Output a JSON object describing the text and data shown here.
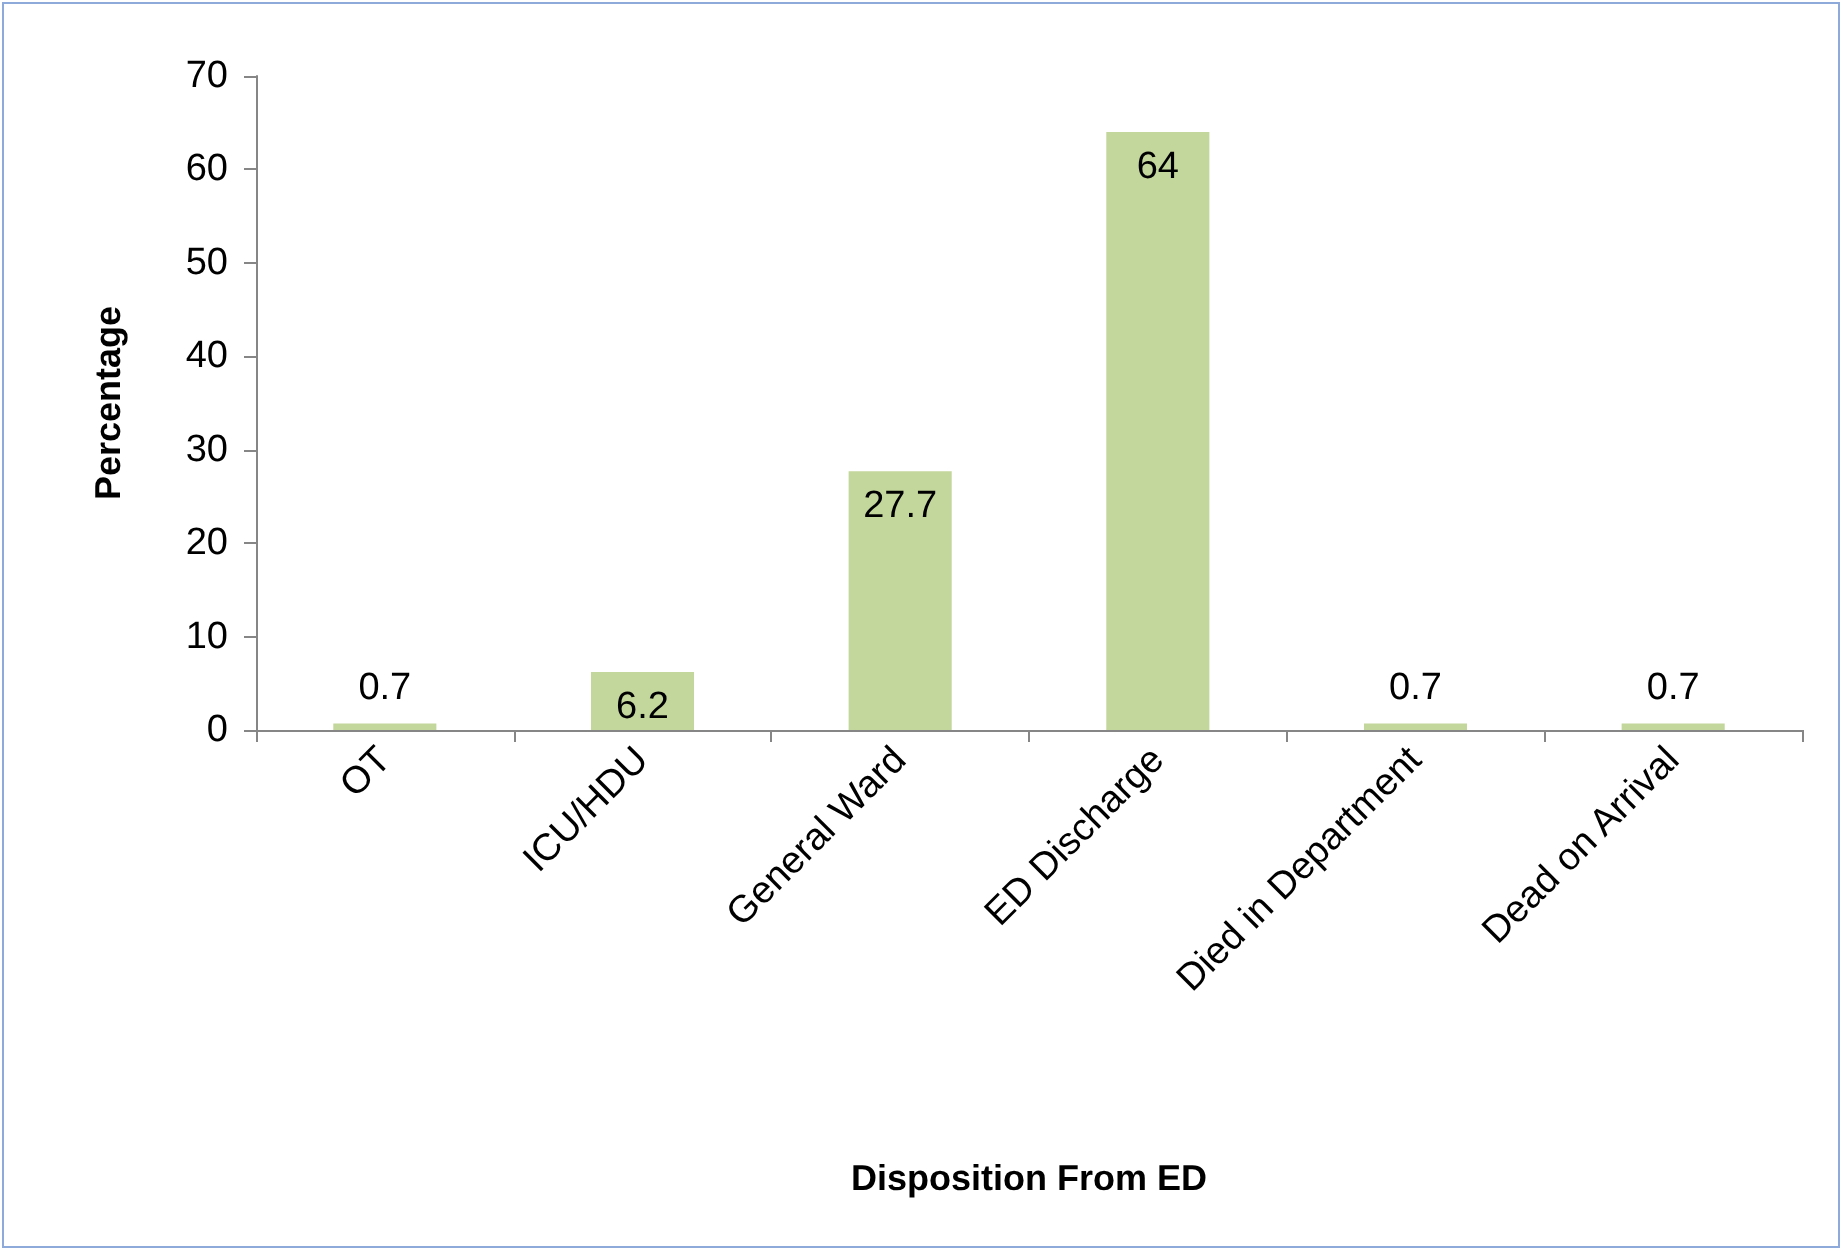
{
  "chart_data": {
    "type": "bar",
    "xlabel": "Disposition From ED",
    "ylabel": "Percentage",
    "categories": [
      "OT",
      "ICU/HDU",
      "General Ward",
      "ED Discharge",
      "Died in Department",
      "Dead on Arrival"
    ],
    "values": [
      0.7,
      6.2,
      27.7,
      64,
      0.7,
      0.7
    ],
    "color": "#c3d69b",
    "ylim": [
      0,
      70
    ],
    "yticks": [
      0,
      10,
      20,
      30,
      40,
      50,
      60,
      70
    ],
    "grid": false,
    "data_labels": true
  }
}
